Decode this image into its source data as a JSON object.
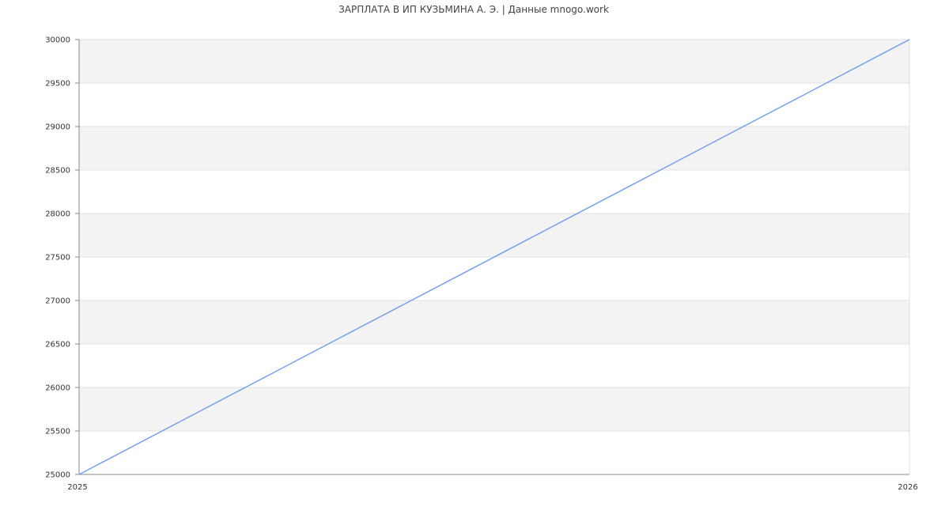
{
  "chart_data": {
    "type": "line",
    "title": "ЗАРПЛАТА В ИП КУЗЬМИНА А. Э. | Данные mnogo.work",
    "xlabel": "",
    "ylabel": "",
    "x": [
      2025,
      2026
    ],
    "series": [
      {
        "values": [
          25000,
          30000
        ],
        "color": "#779ff0"
      }
    ],
    "xlim": [
      2025,
      2026
    ],
    "ylim": [
      25000,
      30000
    ],
    "xticks": [
      "2025",
      "2026"
    ],
    "yticks": [
      "25000",
      "25500",
      "26000",
      "26500",
      "27000",
      "27500",
      "28000",
      "28500",
      "29000",
      "29500",
      "30000"
    ],
    "grid": true,
    "band_color": "#f3f3f3",
    "grid_color": "#e0e0e0",
    "axis_color": "#888888"
  }
}
